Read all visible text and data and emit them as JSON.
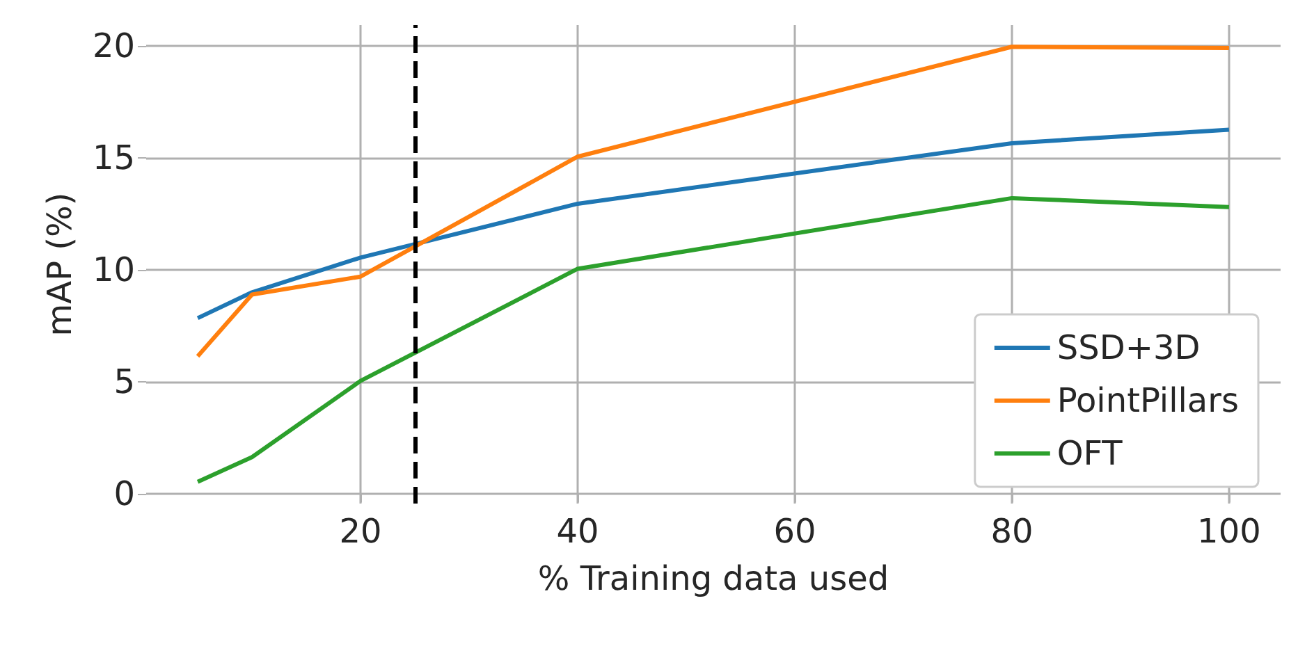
{
  "chart_data": {
    "type": "line",
    "xlabel": "% Training data used",
    "ylabel": "mAP (%)",
    "x": [
      5,
      10,
      20,
      40,
      80,
      100
    ],
    "series": [
      {
        "name": "SSD+3D",
        "color": "#1f77b4",
        "values": [
          7.85,
          9.0,
          10.55,
          12.95,
          15.65,
          16.25
        ]
      },
      {
        "name": "PointPillars",
        "color": "#ff7f0e",
        "values": [
          6.15,
          8.9,
          9.7,
          15.05,
          19.95,
          19.9
        ]
      },
      {
        "name": "OFT",
        "color": "#2ca02c",
        "values": [
          0.55,
          1.65,
          5.05,
          10.05,
          13.2,
          12.8
        ]
      }
    ],
    "xlim": [
      0.25,
      104.75
    ],
    "xticks": [
      20,
      40,
      60,
      80,
      100
    ],
    "ylim": [
      -0.42,
      20.92
    ],
    "yticks": [
      0,
      5,
      10,
      15,
      20
    ],
    "ref_lines": [
      {
        "axis": "x",
        "value": 25,
        "color": "#000000",
        "line_style": "dashed"
      }
    ],
    "grid": true,
    "legend": "bottom right",
    "marker": "none",
    "line_style": "solid"
  }
}
